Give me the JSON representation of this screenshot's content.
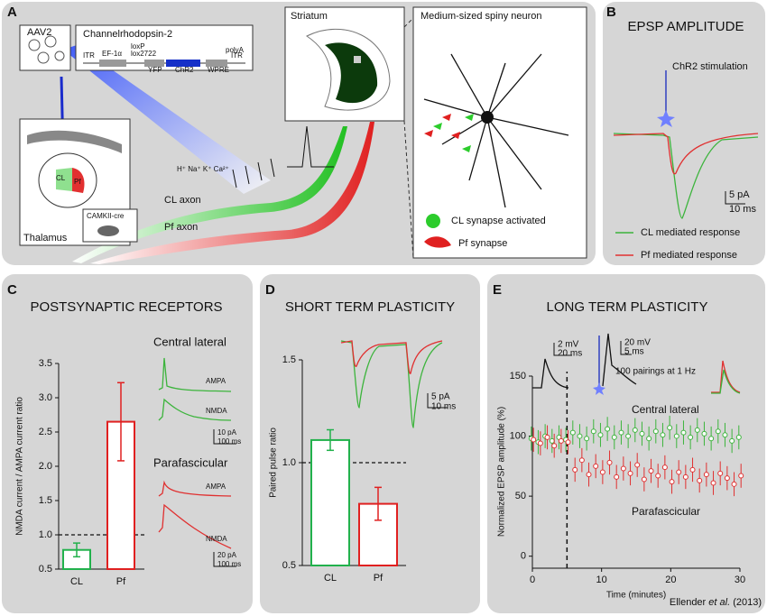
{
  "panels": {
    "A": {
      "letter": "A",
      "aav": "AAV2",
      "construct": "Channelrhodopsin-2",
      "construct_parts": [
        "ITR",
        "EF-1α",
        "loxP",
        "lox2722",
        "YFP",
        "ChR2",
        "WPRE",
        "polyA",
        "ITR"
      ],
      "striatum": "Striatum",
      "neuron": "Medium-sized spiny neuron",
      "thalamus": "Thalamus",
      "cl": "CL",
      "pf": "Pf",
      "mouse": "CAMKII-cre",
      "ions": "H⁺ Na⁺ K⁺ Ca²⁺",
      "cl_axon": "CL axon",
      "pf_axon": "Pf axon",
      "cl_synapse": "CL synapse activated",
      "pf_synapse": "Pf synapse"
    },
    "B": {
      "letter": "B",
      "title": "EPSP AMPLITUDE",
      "stim": "ChR2 stimulation",
      "scale": [
        "5 pA",
        "10 ms"
      ],
      "legend": [
        "CL mediated response",
        "Pf mediated response"
      ]
    },
    "C": {
      "letter": "C",
      "groups": [
        {
          "name": "Central lateral",
          "labels": [
            "AMPA",
            "NMDA"
          ],
          "scale": [
            "10 pA",
            "100 ms"
          ]
        },
        {
          "name": "Parafascicular",
          "labels": [
            "AMPA",
            "NMDA"
          ],
          "scale": [
            "20 pA",
            "100 ms"
          ]
        }
      ]
    },
    "D": {
      "letter": "D",
      "scale": [
        "5 pA",
        "10 ms"
      ]
    },
    "E": {
      "letter": "E",
      "scale1": [
        "2 mV",
        "20 ms"
      ],
      "scale2": [
        "20 mV",
        "5 ms"
      ],
      "protocol": "100 pairings at 1 Hz"
    }
  },
  "chart_data": [
    {
      "type": "bar",
      "title": "POSTSYNAPTIC RECEPTORS",
      "ylabel": "NMDA current / AMPA current ratio",
      "categories": [
        "CL",
        "Pf"
      ],
      "values": [
        0.78,
        2.65
      ],
      "errors": [
        0.1,
        0.57
      ],
      "colors": [
        "#22b14c",
        "#e02020"
      ],
      "ylim": [
        0.5,
        3.5
      ],
      "yticks": [
        0.5,
        {
          "value": 1,
          "label": "1.0"
        },
        1.5,
        {
          "value": 2,
          "label": "2.0"
        },
        2.5,
        {
          "value": 3,
          "label": "3.0"
        },
        3.5
      ],
      "reference_line": 1
    },
    {
      "type": "bar",
      "title": "SHORT TERM PLASTICITY",
      "ylabel": "Paired pulse ratio",
      "categories": [
        "CL",
        "Pf"
      ],
      "values": [
        1.11,
        0.8
      ],
      "errors": [
        0.05,
        0.08
      ],
      "colors": [
        "#22b14c",
        "#e02020"
      ],
      "ylim": [
        0.5,
        1.5
      ],
      "yticks": [
        0.5,
        {
          "value": 1,
          "label": "1.0"
        },
        1.5
      ],
      "reference_line": 1
    },
    {
      "type": "scatter",
      "title": "LONG TERM PLASTICITY",
      "xlabel": "Time (minutes)",
      "ylabel": "Normalized EPSP amplitude (%)",
      "x": [
        0,
        1,
        2,
        3,
        4,
        5,
        6,
        7,
        8,
        9,
        10,
        11,
        12,
        13,
        14,
        15,
        16,
        17,
        18,
        19,
        20,
        21,
        22,
        23,
        24,
        25,
        26,
        27,
        28,
        29,
        30
      ],
      "series": [
        {
          "name": "Central lateral",
          "color": "#3cb43c",
          "values": [
            98,
            95,
            100,
            96,
            99,
            97,
            103,
            100,
            98,
            104,
            101,
            106,
            99,
            103,
            100,
            105,
            102,
            98,
            104,
            101,
            107,
            100,
            103,
            99,
            105,
            102,
            98,
            104,
            101,
            96,
            99
          ],
          "errors": [
            10,
            10,
            10,
            10,
            10,
            10,
            10,
            10,
            10,
            10,
            10,
            10,
            10,
            10,
            10,
            10,
            10,
            10,
            10,
            10,
            10,
            10,
            10,
            10,
            10,
            10,
            10,
            10,
            10,
            10,
            10
          ]
        },
        {
          "name": "Parafascicular",
          "color": "#e03030",
          "values": [
            97,
            94,
            99,
            92,
            96,
            95,
            72,
            80,
            68,
            75,
            70,
            78,
            66,
            73,
            69,
            76,
            64,
            71,
            67,
            74,
            62,
            70,
            66,
            72,
            63,
            68,
            61,
            69,
            65,
            60,
            67
          ],
          "errors": [
            10,
            10,
            10,
            10,
            10,
            10,
            10,
            10,
            10,
            10,
            10,
            10,
            10,
            10,
            10,
            10,
            10,
            10,
            10,
            10,
            10,
            10,
            10,
            10,
            10,
            10,
            10,
            10,
            10,
            10,
            10
          ]
        }
      ],
      "xlim": [
        0,
        30
      ],
      "ylim": [
        -10,
        150
      ],
      "xticks": [
        0,
        10,
        20,
        30
      ],
      "yticks": [
        0,
        50,
        100,
        150
      ],
      "event_line": 5
    }
  ],
  "citation": {
    "author": "Ellender",
    "etal": "et al.",
    "year": "(2013)"
  }
}
